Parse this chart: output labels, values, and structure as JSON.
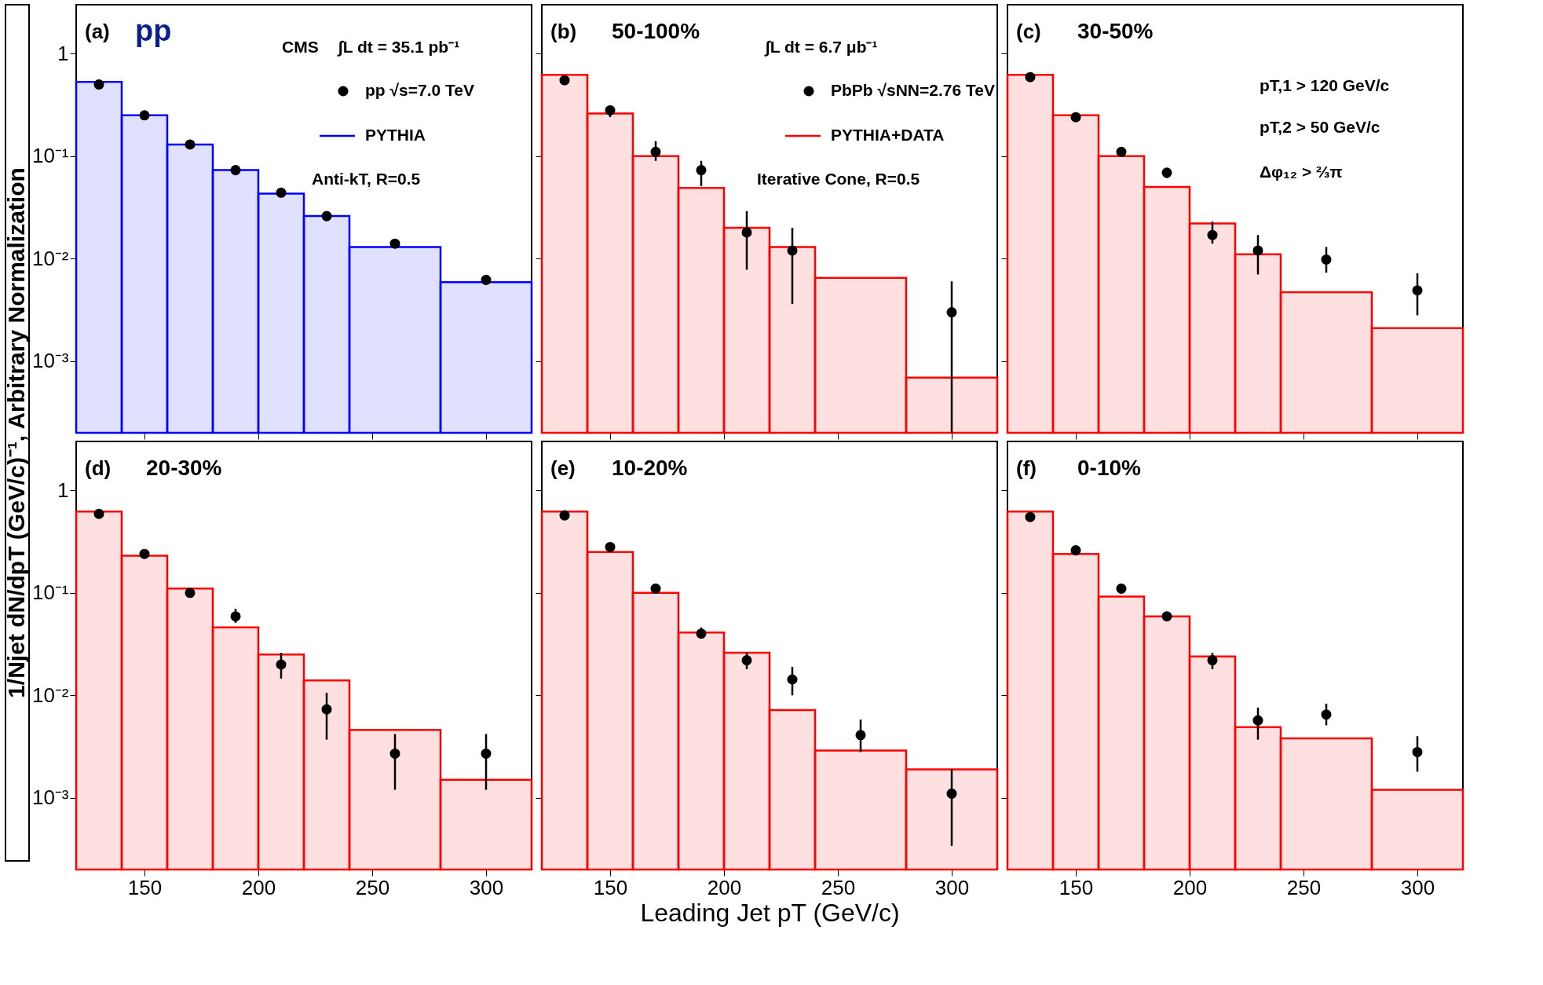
{
  "chart_data": [
    {
      "type": "histogram",
      "log": "y",
      "tick_labels": "y",
      "legend": "top right",
      "marker": "circle",
      "ylabel": "1/Njet dN/dpT (GeV/c)⁻¹, Arbitrary Normalization",
      "xlim": [
        120,
        320
      ],
      "ylim": [
        0.0002,
        3
      ],
      "xticks": [
        {
          "value": 150,
          "label": null
        },
        {
          "value": 200,
          "label": null
        },
        {
          "value": 250,
          "label": null
        },
        {
          "value": 300,
          "label": null
        }
      ],
      "yticks": [
        {
          "value": 0.001,
          "label": "10⁻³"
        },
        {
          "value": 0.01,
          "label": "10⁻²"
        },
        {
          "value": 0.1,
          "label": "10⁻¹"
        },
        1
      ],
      "annotations": [
        "(a)",
        "pp",
        "CMS",
        "∫L dt = 35.1 pb⁻¹",
        "Anti-kT, R=0.5"
      ],
      "series": [
        {
          "type": "histogram",
          "name": "PYTHIA",
          "color": "#0000ff",
          "bins": [
            120,
            140,
            160,
            180,
            200,
            220,
            240,
            280,
            320
          ],
          "values": [
            0.53,
            0.25,
            0.13,
            0.073,
            0.043,
            0.026,
            0.013,
            0.0059
          ]
        },
        {
          "type": "scatter",
          "name": "pp √s=7.0 TeV",
          "color": "#000000",
          "x": [
            130,
            150,
            170,
            190,
            210,
            230,
            260,
            300
          ],
          "values": [
            0.5,
            0.25,
            0.13,
            0.073,
            0.044,
            0.026,
            0.014,
            0.0062
          ]
        }
      ]
    },
    {
      "type": "histogram",
      "log": "y",
      "tick_labels": false,
      "legend": "top right",
      "marker": "circle",
      "xlim": [
        120,
        320
      ],
      "ylim": [
        0.0002,
        3
      ],
      "xticks": [
        {
          "value": 150,
          "label": null
        },
        {
          "value": 200,
          "label": null
        },
        {
          "value": 250,
          "label": null
        },
        {
          "value": 300,
          "label": null
        }
      ],
      "yticks": [
        {
          "value": 0.001,
          "label": null
        },
        {
          "value": 0.01,
          "label": null
        },
        {
          "value": 0.1,
          "label": null
        },
        {
          "value": 1,
          "label": null
        }
      ],
      "annotations": [
        "(b)",
        "50-100%",
        "∫L dt = 6.7 μb⁻¹",
        "Iterative Cone, R=0.5"
      ],
      "series": [
        {
          "type": "histogram",
          "name": "PYTHIA+DATA",
          "color": "#ff0000",
          "bins": [
            120,
            140,
            160,
            180,
            200,
            220,
            240,
            280,
            320
          ],
          "values": [
            0.62,
            0.26,
            0.1,
            0.049,
            0.02,
            0.013,
            0.0065,
            0.00069
          ]
        },
        {
          "type": "scatter",
          "name": "PbPb √sNN=2.76 TeV",
          "color": "#000000",
          "x": [
            130,
            150,
            170,
            190,
            210,
            230,
            300
          ],
          "values": [
            0.55,
            0.28,
            0.11,
            0.073,
            0.018,
            0.012,
            0.003
          ],
          "errors": [
            null,
            [
              0.24,
              0.31
            ],
            [
              0.09,
              0.14
            ],
            [
              0.051,
              0.09
            ],
            [
              0.0078,
              0.029
            ],
            [
              0.0036,
              0.02
            ],
            [
              0.0002,
              0.006
            ]
          ]
        }
      ]
    },
    {
      "type": "histogram",
      "log": "y",
      "tick_labels": false,
      "marker": "circle",
      "xlim": [
        120,
        320
      ],
      "ylim": [
        0.0002,
        3
      ],
      "xticks": [
        {
          "value": 150,
          "label": null
        },
        {
          "value": 200,
          "label": null
        },
        {
          "value": 250,
          "label": null
        },
        {
          "value": 300,
          "label": null
        }
      ],
      "yticks": [
        {
          "value": 0.001,
          "label": null
        },
        {
          "value": 0.01,
          "label": null
        },
        {
          "value": 0.1,
          "label": null
        },
        {
          "value": 1,
          "label": null
        }
      ],
      "annotations": [
        "(c)",
        "30-50%",
        "pT,1 > 120 GeV/c",
        "pT,2 > 50 GeV/c",
        "Δφ₁₂ > ⅔π"
      ],
      "series": [
        {
          "type": "histogram",
          "color": "#ff0000",
          "bins": [
            120,
            140,
            160,
            180,
            200,
            220,
            240,
            280,
            320
          ],
          "values": [
            0.62,
            0.25,
            0.1,
            0.05,
            0.022,
            0.011,
            0.0047,
            0.0021
          ]
        },
        {
          "type": "scatter",
          "color": "#000000",
          "x": [
            130,
            150,
            170,
            190,
            210,
            230,
            260,
            300
          ],
          "values": [
            0.59,
            0.24,
            0.11,
            0.069,
            0.017,
            0.012,
            0.0098,
            0.0049
          ],
          "errors": [
            null,
            null,
            null,
            [
              0.061,
              0.076
            ],
            [
              0.014,
              0.023
            ],
            [
              0.007,
              0.017
            ],
            [
              0.0073,
              0.013
            ],
            [
              0.0028,
              0.0072
            ]
          ]
        }
      ]
    },
    {
      "type": "histogram",
      "log": "y",
      "marker": "circle",
      "xlim": [
        120,
        320
      ],
      "ylim": [
        0.0002,
        3
      ],
      "xticks": [
        150,
        200,
        250,
        300
      ],
      "yticks": [
        {
          "value": 0.001,
          "label": "10⁻³"
        },
        {
          "value": 0.01,
          "label": "10⁻²"
        },
        {
          "value": 0.1,
          "label": "10⁻¹"
        },
        1
      ],
      "annotations": [
        "(d)",
        "20-30%"
      ],
      "series": [
        {
          "type": "histogram",
          "color": "#ff0000",
          "bins": [
            120,
            140,
            160,
            180,
            200,
            220,
            240,
            280,
            320
          ],
          "values": [
            0.62,
            0.23,
            0.11,
            0.046,
            0.025,
            0.014,
            0.0046,
            0.0015
          ]
        },
        {
          "type": "scatter",
          "color": "#000000",
          "x": [
            130,
            150,
            170,
            190,
            210,
            230,
            260,
            300
          ],
          "values": [
            0.59,
            0.24,
            0.1,
            0.059,
            0.02,
            0.0073,
            0.0027,
            0.0027
          ],
          "errors": [
            null,
            null,
            null,
            [
              0.051,
              0.07
            ],
            [
              0.0146,
              0.026
            ],
            [
              0.0037,
              0.0106
            ],
            [
              0.0012,
              0.0042
            ],
            [
              0.0012,
              0.0042
            ]
          ]
        }
      ]
    },
    {
      "type": "histogram",
      "log": "y",
      "tick_labels": "x",
      "marker": "circle",
      "xlabel": "Leading Jet pT (GeV/c)",
      "xlim": [
        120,
        320
      ],
      "ylim": [
        0.0002,
        3
      ],
      "xticks": [
        150,
        200,
        250,
        300
      ],
      "yticks": [
        {
          "value": 0.001,
          "label": null
        },
        {
          "value": 0.01,
          "label": null
        },
        {
          "value": 0.1,
          "label": null
        },
        {
          "value": 1,
          "label": null
        }
      ],
      "annotations": [
        "(e)",
        "10-20%"
      ],
      "series": [
        {
          "type": "histogram",
          "color": "#ff0000",
          "bins": [
            120,
            140,
            160,
            180,
            200,
            220,
            240,
            280,
            320
          ],
          "values": [
            0.62,
            0.25,
            0.1,
            0.041,
            0.026,
            0.0072,
            0.0029,
            0.0019
          ]
        },
        {
          "type": "scatter",
          "color": "#000000",
          "x": [
            130,
            150,
            170,
            190,
            210,
            230,
            260,
            300
          ],
          "values": [
            0.57,
            0.28,
            0.11,
            0.04,
            0.022,
            0.0143,
            0.0041,
            0.0011
          ],
          "errors": [
            null,
            null,
            null,
            [
              0.036,
              0.046
            ],
            [
              0.018,
              0.026
            ],
            [
              0.01,
              0.019
            ],
            [
              0.0028,
              0.0058
            ],
            [
              0.00034,
              0.0019
            ]
          ]
        }
      ]
    },
    {
      "type": "histogram",
      "log": "y",
      "tick_labels": "x",
      "marker": "circle",
      "xlim": [
        120,
        320
      ],
      "ylim": [
        0.0002,
        3
      ],
      "xticks": [
        150,
        200,
        250,
        300
      ],
      "yticks": [
        {
          "value": 0.001,
          "label": null
        },
        {
          "value": 0.01,
          "label": null
        },
        {
          "value": 0.1,
          "label": null
        },
        {
          "value": 1,
          "label": null
        }
      ],
      "annotations": [
        "(f)",
        "0-10%"
      ],
      "series": [
        {
          "type": "histogram",
          "color": "#ff0000",
          "bins": [
            120,
            140,
            160,
            180,
            200,
            220,
            240,
            280,
            320
          ],
          "values": [
            0.62,
            0.24,
            0.092,
            0.059,
            0.024,
            0.0049,
            0.0038,
            0.0012
          ]
        },
        {
          "type": "scatter",
          "color": "#000000",
          "x": [
            130,
            150,
            170,
            190,
            210,
            230,
            260,
            300
          ],
          "values": [
            0.55,
            0.26,
            0.11,
            0.059,
            0.022,
            0.0057,
            0.0065,
            0.0028
          ],
          "errors": [
            null,
            null,
            null,
            null,
            [
              0.018,
              0.026
            ],
            [
              0.0037,
              0.0076
            ],
            [
              0.0051,
              0.0083
            ],
            [
              0.0018,
              0.004
            ]
          ]
        }
      ]
    }
  ]
}
